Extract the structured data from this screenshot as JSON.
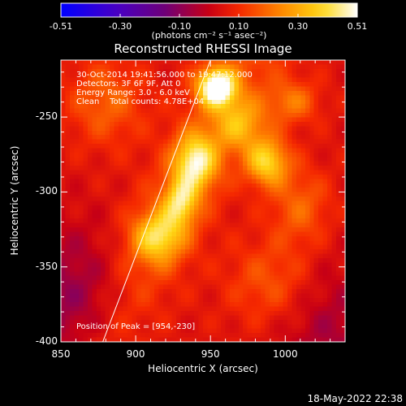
{
  "chart_data": {
    "type": "heatmap",
    "title": "Reconstructed RHESSI Image",
    "xlabel": "Heliocentric X (arcsec)",
    "ylabel": "Heliocentric Y (arcsec)",
    "xlim": [
      850,
      1040
    ],
    "ylim": [
      -400,
      -212
    ],
    "x_ticks": [
      "850",
      "900",
      "950",
      "1000"
    ],
    "y_ticks": [
      "-250",
      "-300",
      "-350",
      "-400"
    ],
    "colorbar": {
      "range": [
        -0.51,
        0.51
      ],
      "tick_labels": [
        "-0.51",
        "-0.30",
        "-0.10",
        "0.10",
        "0.30",
        "0.51"
      ],
      "units": "(photons cm⁻² s⁻¹ asec⁻²)"
    },
    "annotations": [
      "30-Oct-2014 19:41:56.000 to 19:47:12.000",
      "Detectors: 3F 6F 9F, Att 0",
      "Energy Range: 3.0 - 6.0 keV",
      "Clean    Total counts: 4.78E+04"
    ],
    "peak_label": "Position of Peak = [954,-230]",
    "peak": {
      "x": 954,
      "y": -230,
      "value": 0.51
    },
    "sources": [
      {
        "x": 954,
        "y": -230,
        "peak": 0.51,
        "sx": 9,
        "sy": 9
      },
      {
        "x": 940,
        "y": -280,
        "peak": 0.36,
        "sx": 10,
        "sy": 13
      },
      {
        "x": 988,
        "y": -280,
        "peak": 0.33,
        "sx": 10,
        "sy": 11
      },
      {
        "x": 915,
        "y": -330,
        "peak": 0.3,
        "sx": 12,
        "sy": 12
      },
      {
        "x": 930,
        "y": -307,
        "peak": 0.28,
        "sx": 8,
        "sy": 11
      },
      {
        "x": 970,
        "y": -255,
        "peak": 0.22,
        "sx": 12,
        "sy": 12
      },
      {
        "x": 1005,
        "y": -240,
        "peak": 0.16,
        "sx": 12,
        "sy": 10
      },
      {
        "x": 880,
        "y": -240,
        "peak": 0.14,
        "sx": 18,
        "sy": 20
      },
      {
        "x": 1010,
        "y": -310,
        "peak": 0.14,
        "sx": 14,
        "sy": 18
      },
      {
        "x": 990,
        "y": -360,
        "peak": 0.12,
        "sx": 20,
        "sy": 20
      }
    ],
    "background": [
      {
        "x": 860,
        "y": -375,
        "depth": -0.15
      },
      {
        "x": 1030,
        "y": -395,
        "depth": -0.1
      }
    ],
    "limb_line": [
      [
        950,
        -212
      ],
      [
        878,
        -400
      ]
    ]
  },
  "footer_timestamp": "18-May-2022 22:38"
}
